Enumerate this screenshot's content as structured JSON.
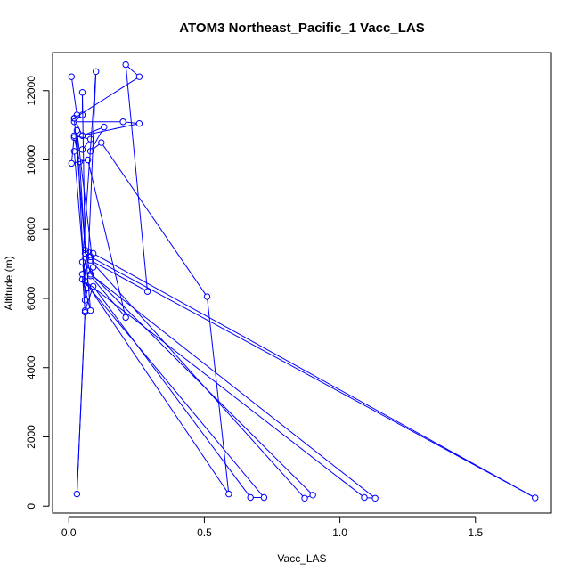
{
  "chart_data": {
    "type": "line",
    "title": "ATOM3 Northeast_Pacific_1 Vacc_LAS",
    "xlabel": "Vacc_LAS",
    "ylabel": "Altitude (m)",
    "xlim": [
      -0.06,
      1.78
    ],
    "ylim": [
      -200,
      13100
    ],
    "x_ticks": [
      0.0,
      0.5,
      1.0,
      1.5
    ],
    "x_tick_labels": [
      "0.0",
      "0.5",
      "1.0",
      "1.5"
    ],
    "y_ticks": [
      0,
      2000,
      4000,
      6000,
      8000,
      10000,
      12000
    ],
    "y_tick_labels": [
      "0",
      "2000",
      "4000",
      "6000",
      "8000",
      "10000",
      "12000"
    ],
    "grid": false,
    "color": "#0000ff",
    "series": [
      {
        "points": [
          [
            0.01,
            12400
          ],
          [
            0.03,
            11300
          ],
          [
            0.02,
            11200
          ],
          [
            0.05,
            10700
          ],
          [
            0.02,
            10650
          ],
          [
            0.04,
            9950
          ],
          [
            0.06,
            7400
          ],
          [
            0.08,
            6700
          ],
          [
            1.13,
            230
          ],
          [
            1.09,
            250
          ],
          [
            0.06,
            6500
          ],
          [
            0.05,
            7050
          ],
          [
            0.1,
            12550
          ],
          [
            0.07,
            6800
          ],
          [
            0.9,
            320
          ],
          [
            0.87,
            230
          ],
          [
            0.08,
            7100
          ],
          [
            0.29,
            6200
          ],
          [
            0.21,
            12750
          ],
          [
            0.26,
            12400
          ],
          [
            0.02,
            11200
          ],
          [
            0.08,
            5650
          ],
          [
            0.05,
            6550
          ],
          [
            0.72,
            250
          ],
          [
            0.67,
            250
          ],
          [
            0.09,
            6350
          ],
          [
            0.06,
            5650
          ],
          [
            0.03,
            350
          ],
          [
            0.06,
            5600
          ],
          [
            0.05,
            6700
          ],
          [
            0.07,
            7350
          ],
          [
            0.09,
            7300
          ],
          [
            1.72,
            240
          ],
          [
            0.08,
            7200
          ],
          [
            0.06,
            7300
          ],
          [
            0.05,
            11950
          ],
          [
            0.05,
            11300
          ],
          [
            0.02,
            11100
          ],
          [
            0.2,
            11100
          ],
          [
            0.26,
            11050
          ],
          [
            0.05,
            10700
          ],
          [
            0.13,
            10950
          ],
          [
            0.08,
            10250
          ],
          [
            0.12,
            10500
          ],
          [
            0.51,
            6050
          ],
          [
            0.59,
            350
          ],
          [
            0.06,
            6500
          ],
          [
            0.02,
            10250
          ],
          [
            0.05,
            10300
          ],
          [
            0.08,
            10600
          ],
          [
            0.02,
            10700
          ],
          [
            0.01,
            9900
          ],
          [
            0.07,
            10000
          ],
          [
            0.21,
            5450
          ],
          [
            0.08,
            6650
          ],
          [
            0.09,
            6900
          ],
          [
            0.03,
            10850
          ],
          [
            0.06,
            5950
          ],
          [
            0.07,
            6300
          ]
        ]
      }
    ]
  }
}
